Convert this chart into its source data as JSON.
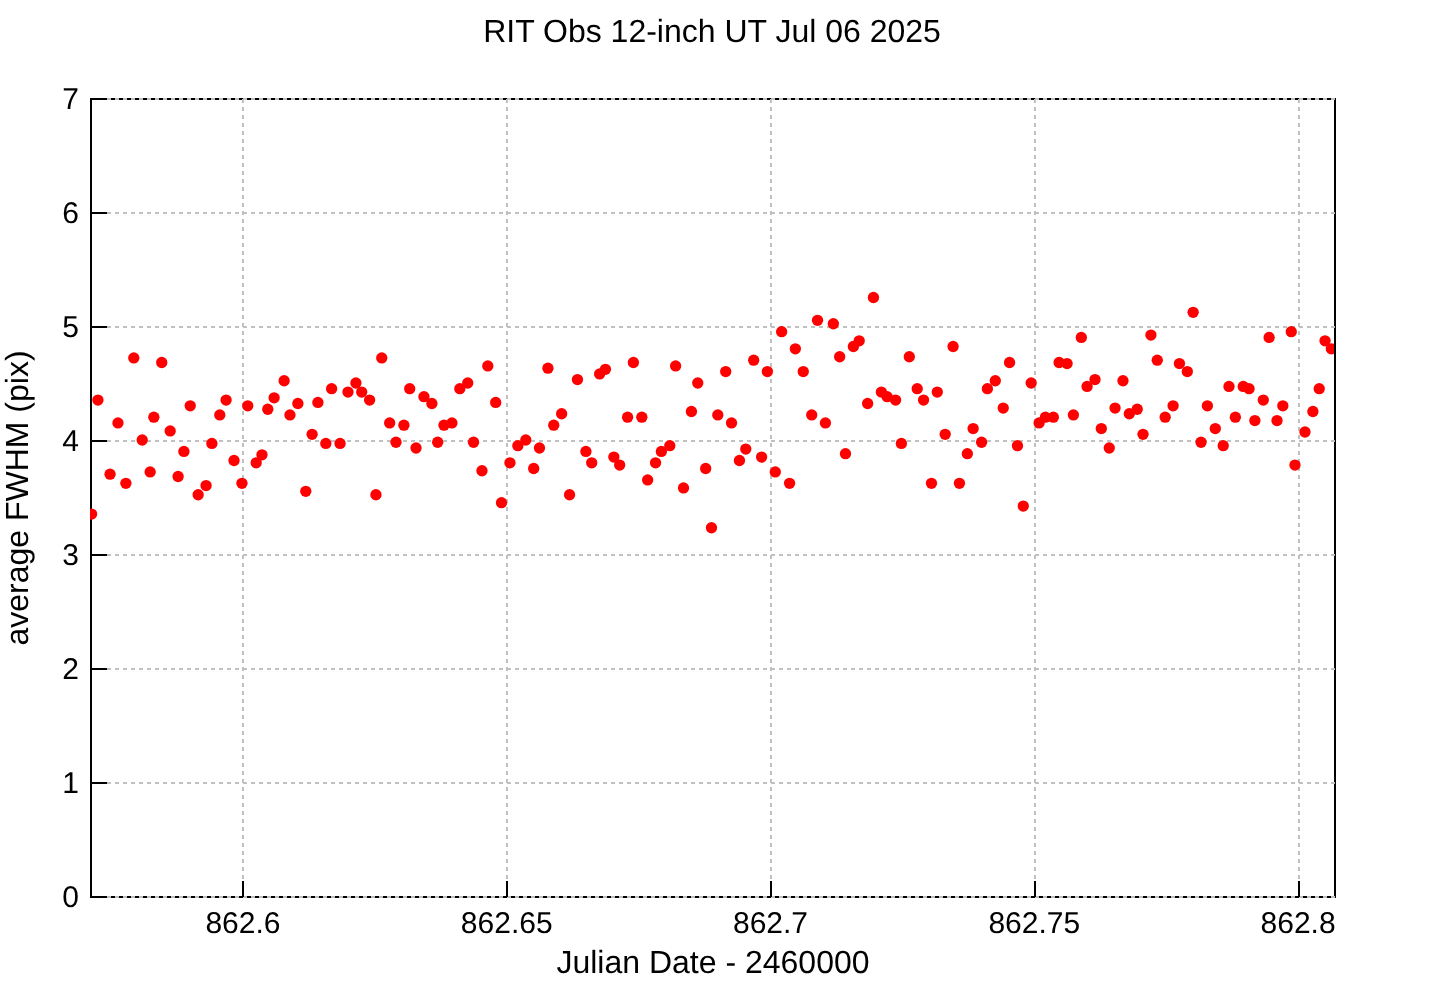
{
  "chart_data": {
    "type": "scatter",
    "title": "RIT Obs 12-inch UT Jul 06 2025",
    "xlabel": "Julian Date - 2460000",
    "ylabel": "average FWHM (pix)",
    "xlim": [
      862.5712,
      862.807
    ],
    "ylim": [
      0,
      7
    ],
    "xticks": [
      862.6,
      862.65,
      862.7,
      862.75,
      862.8
    ],
    "yticks": [
      0,
      1,
      2,
      3,
      4,
      5,
      6,
      7
    ],
    "grid": true,
    "marker": "circle",
    "series": [
      {
        "color": "#ff0000",
        "x": [
          862.5715,
          862.5727,
          862.575,
          862.5765,
          862.578,
          862.5795,
          862.5811,
          862.5826,
          862.5833,
          862.5848,
          862.5864,
          862.5879,
          862.589,
          862.5902,
          862.5917,
          862.5932,
          862.5943,
          862.5958,
          862.597,
          862.5985,
          862.6,
          862.6011,
          862.6027,
          862.6038,
          862.6049,
          862.6061,
          862.608,
          862.6091,
          862.6106,
          862.6121,
          862.6133,
          862.6144,
          862.6159,
          862.617,
          862.6186,
          862.6201,
          862.6216,
          862.6227,
          862.6242,
          862.6254,
          862.6265,
          862.628,
          862.6292,
          862.6307,
          862.6318,
          862.633,
          862.6345,
          862.636,
          862.6371,
          862.6383,
          862.6398,
          862.6413,
          862.6428,
          862.6439,
          862.6455,
          862.6466,
          862.6481,
          862.6492,
          862.6508,
          862.6523,
          862.6538,
          862.6553,
          862.6564,
          862.658,
          862.6591,
          862.6606,
          862.6621,
          862.6636,
          862.6652,
          862.6663,
          862.6678,
          862.6689,
          862.6705,
          862.6716,
          862.6731,
          862.6742,
          862.6758,
          862.6769,
          862.6784,
          862.6795,
          862.6811,
          862.6822,
          862.6837,
          862.6852,
          862.6864,
          862.6879,
          862.689,
          862.6902,
          862.6917,
          862.6928,
          862.6943,
          862.6955,
          862.697,
          862.6985,
          862.6996,
          862.7011,
          862.7023,
          862.7038,
          862.7049,
          862.7064,
          862.708,
          862.7091,
          862.7106,
          862.7121,
          862.7133,
          862.7144,
          862.7159,
          862.717,
          862.7186,
          862.7197,
          862.7212,
          862.7223,
          862.7239,
          862.725,
          862.7265,
          862.728,
          862.7292,
          862.7307,
          862.7318,
          862.7333,
          862.7348,
          862.736,
          862.7375,
          862.7386,
          862.7402,
          862.7413,
          862.7428,
          862.7443,
          862.7455,
          862.747,
          862.7481,
          862.7496,
          862.7511,
          862.7523,
          862.7538,
          862.7549,
          862.7564,
          862.7576,
          862.7591,
          862.7602,
          862.7617,
          862.7629,
          862.7644,
          862.7655,
          862.767,
          862.7682,
          862.7697,
          862.7708,
          862.7723,
          862.7735,
          862.775,
          862.7765,
          862.7777,
          862.7792,
          862.7803,
          862.7818,
          862.783,
          862.7845,
          862.786,
          862.7871,
          862.7883,
          862.7898,
          862.7909,
          862.792,
          862.7936,
          862.7947,
          862.7962,
          862.7973,
          862.7989,
          862.7996,
          862.8015,
          862.803,
          862.8042,
          862.8053,
          862.8065
        ],
        "values": [
          3.35,
          4.35,
          3.7,
          4.15,
          3.62,
          4.72,
          4.0,
          3.72,
          4.2,
          4.68,
          4.08,
          3.68,
          3.9,
          4.3,
          3.52,
          3.6,
          3.97,
          4.22,
          4.35,
          3.82,
          3.62,
          4.3,
          3.8,
          3.87,
          4.27,
          4.37,
          4.52,
          4.22,
          4.32,
          3.55,
          4.05,
          4.33,
          3.97,
          4.45,
          3.97,
          4.42,
          4.5,
          4.42,
          4.35,
          3.52,
          4.72,
          4.15,
          3.98,
          4.13,
          4.45,
          3.93,
          4.38,
          4.32,
          3.98,
          4.13,
          4.15,
          4.45,
          4.5,
          3.98,
          3.73,
          4.65,
          4.33,
          3.45,
          3.8,
          3.95,
          4.0,
          3.75,
          3.93,
          4.63,
          4.13,
          4.23,
          3.52,
          4.53,
          3.9,
          3.8,
          4.58,
          4.62,
          3.85,
          3.78,
          4.2,
          4.68,
          4.2,
          3.65,
          3.8,
          3.9,
          3.95,
          4.65,
          3.58,
          4.25,
          4.5,
          3.75,
          3.23,
          4.22,
          4.6,
          4.15,
          3.82,
          3.92,
          4.7,
          3.85,
          4.6,
          3.72,
          4.95,
          3.62,
          4.8,
          4.6,
          4.22,
          5.05,
          4.15,
          5.02,
          4.73,
          3.88,
          4.82,
          4.87,
          4.32,
          5.25,
          4.42,
          4.38,
          4.35,
          3.97,
          4.73,
          4.45,
          4.35,
          3.62,
          4.42,
          4.05,
          4.82,
          3.62,
          3.88,
          4.1,
          3.98,
          4.45,
          4.52,
          4.28,
          4.68,
          3.95,
          3.42,
          4.5,
          4.15,
          4.2,
          4.2,
          4.68,
          4.67,
          4.22,
          4.9,
          4.47,
          4.53,
          4.1,
          3.93,
          4.28,
          4.52,
          4.23,
          4.27,
          4.05,
          4.92,
          4.7,
          4.2,
          4.3,
          4.67,
          4.6,
          5.12,
          3.98,
          4.3,
          4.1,
          3.95,
          4.47,
          4.2,
          4.47,
          4.45,
          4.17,
          4.35,
          4.9,
          4.17,
          4.3,
          4.95,
          3.78,
          4.07,
          4.25,
          4.45,
          4.87,
          4.8
        ]
      }
    ]
  }
}
